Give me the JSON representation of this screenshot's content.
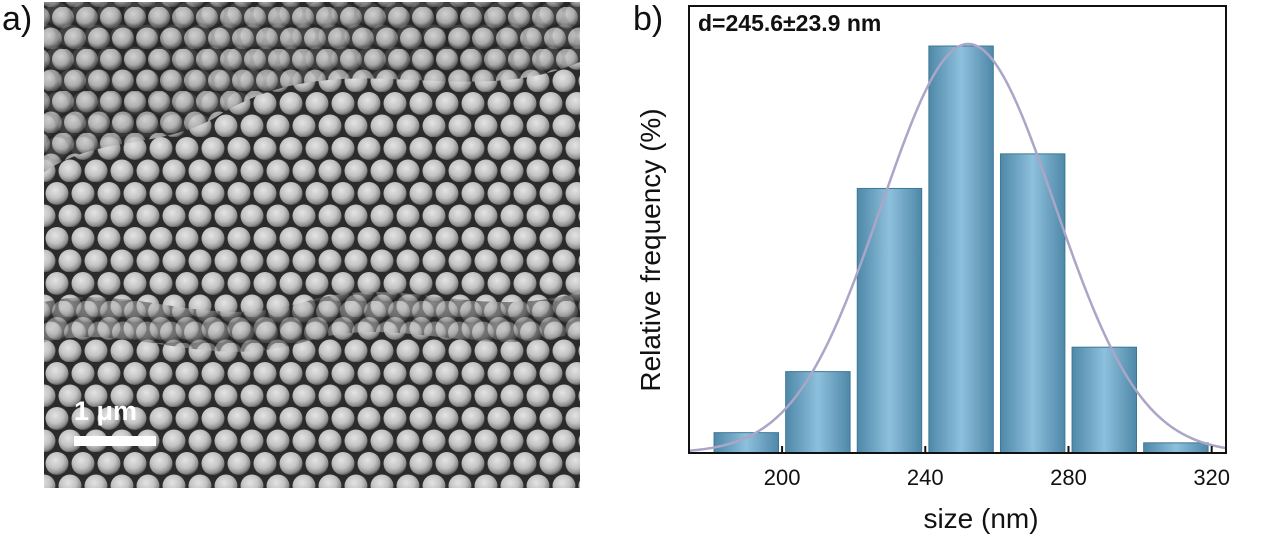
{
  "panel_a": {
    "label": "a)",
    "scale_bar_label": "1 μm",
    "image_description_icon": "sem-micrograph-icon"
  },
  "panel_b": {
    "label": "b)"
  },
  "chart_data": {
    "type": "bar",
    "title": "",
    "annotation": "d=245.6±23.9 nm",
    "xlabel": "size (nm)",
    "ylabel": "Relative frequency (%)",
    "xlim": [
      174,
      324
    ],
    "ylim": [
      0,
      100
    ],
    "xticks": [
      200,
      240,
      280,
      320
    ],
    "bar_width": 20,
    "x": [
      190,
      210,
      230,
      250,
      270,
      290,
      310
    ],
    "values": [
      5,
      20,
      65,
      100,
      73.5,
      26,
      2.5
    ],
    "fit": {
      "type": "gaussian",
      "mean": 252,
      "sigma": 24.2,
      "peak": 100.5,
      "color": "#a9a6c8"
    },
    "bar_color": "#6aa3c2",
    "bar_edge_color": "#3f7896"
  }
}
